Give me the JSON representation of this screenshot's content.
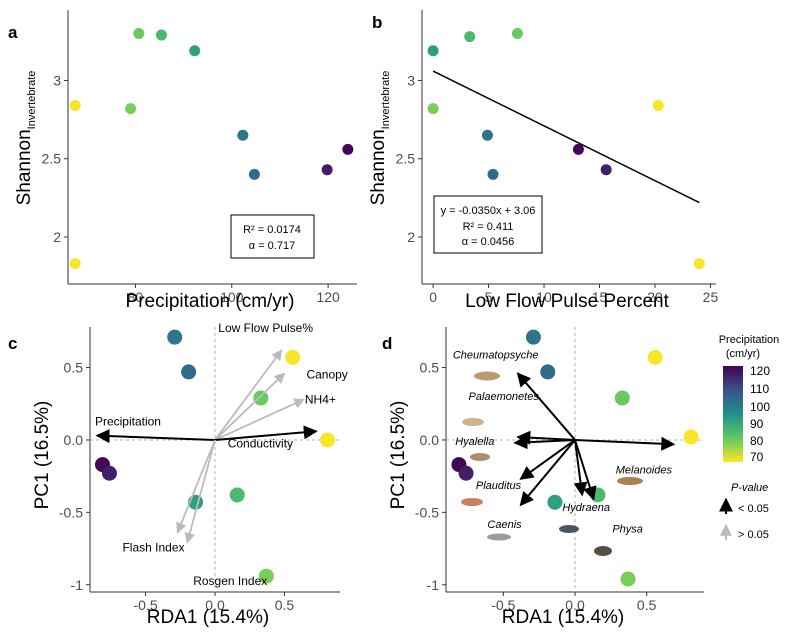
{
  "panels_text": {
    "a": {
      "letter": "a",
      "xlabel": "Precipitation (cm/yr)",
      "ylabel_main": "Shannon",
      "ylabel_sub": "Invertebrate",
      "stats_r2": "R² = 0.0174",
      "stats_alpha": "α = 0.717"
    },
    "b": {
      "letter": "b",
      "xlabel": "Low Flow Pulse Percent",
      "ylabel_main": "Shannon",
      "ylabel_sub": "Invertebrate",
      "stats_eq": "y = -0.0350x + 3.06",
      "stats_r2": "R² = 0.411",
      "stats_alpha": "α = 0.0456"
    },
    "c": {
      "letter": "c",
      "xlabel": "RDA1 (15.4%)",
      "ylabel": "PC1 (16.5%)"
    },
    "d": {
      "letter": "d",
      "xlabel": "RDA1 (15.4%)",
      "ylabel": "PC1 (16.5%)"
    }
  },
  "legend": {
    "title_line1": "Precipitation",
    "title_line2": "(cm/yr)",
    "ticks": [
      "120",
      "110",
      "100",
      "90",
      "80",
      "70"
    ],
    "pvalue_title": "P-value",
    "p_sig": "< 0.05",
    "p_nonsig": "> 0.05",
    "colors": [
      "#440154",
      "#3b528b",
      "#21908d",
      "#5dc863",
      "#fde725"
    ]
  },
  "chart_data": [
    {
      "id": "a",
      "type": "scatter",
      "xlabel": "Precipitation (cm/yr)",
      "ylabel": "Shannon Invertebrate",
      "xlim": [
        66,
        126
      ],
      "ylim": [
        1.7,
        3.45
      ],
      "xticks": [
        80,
        100,
        120
      ],
      "yticks": [
        2.0,
        2.5,
        3.0
      ],
      "points": [
        {
          "x": 67.5,
          "y": 2.84,
          "precip": 67.5
        },
        {
          "x": 67.5,
          "y": 1.83,
          "precip": 67.5
        },
        {
          "x": 79,
          "y": 2.82,
          "precip": 79
        },
        {
          "x": 80.7,
          "y": 3.3,
          "precip": 80.7
        },
        {
          "x": 85.4,
          "y": 3.29,
          "precip": 85.4
        },
        {
          "x": 92.3,
          "y": 3.19,
          "precip": 92.3
        },
        {
          "x": 102.3,
          "y": 2.65,
          "precip": 102.3
        },
        {
          "x": 104.7,
          "y": 2.4,
          "precip": 104.7
        },
        {
          "x": 119.8,
          "y": 2.43,
          "precip": 119.8
        },
        {
          "x": 124.1,
          "y": 2.56,
          "precip": 124.1
        }
      ],
      "annotation": {
        "r2": 0.0174,
        "alpha": 0.717
      }
    },
    {
      "id": "b",
      "type": "scatter",
      "xlabel": "Low Flow Pulse Percent",
      "ylabel": "Shannon Invertebrate",
      "xlim": [
        -1,
        25.5
      ],
      "ylim": [
        1.7,
        3.45
      ],
      "xticks": [
        0,
        5,
        10,
        15,
        20,
        25
      ],
      "yticks": [
        2.0,
        2.5,
        3.0
      ],
      "points": [
        {
          "x": 0,
          "y": 3.19,
          "precip": 92.3
        },
        {
          "x": 0,
          "y": 2.82,
          "precip": 79
        },
        {
          "x": 3.3,
          "y": 3.28,
          "precip": 85.4
        },
        {
          "x": 7.6,
          "y": 3.3,
          "precip": 80.7
        },
        {
          "x": 4.9,
          "y": 2.65,
          "precip": 102.3
        },
        {
          "x": 5.4,
          "y": 2.4,
          "precip": 104.7
        },
        {
          "x": 13.1,
          "y": 2.56,
          "precip": 124.1
        },
        {
          "x": 15.6,
          "y": 2.43,
          "precip": 119.8
        },
        {
          "x": 20.3,
          "y": 2.84,
          "precip": 67.5
        },
        {
          "x": 24,
          "y": 1.83,
          "precip": 67.5
        }
      ],
      "fit": {
        "slope": -0.035,
        "intercept": 3.06,
        "x_from": 0,
        "x_to": 24
      },
      "annotation": {
        "equation": "y = -0.0350x + 3.06",
        "r2": 0.411,
        "alpha": 0.0456
      }
    },
    {
      "id": "c",
      "type": "scatter",
      "xlabel": "RDA1 (15.4%)",
      "ylabel": "PC1 (16.5%)",
      "xlim": [
        -0.9,
        0.9
      ],
      "ylim": [
        -1.05,
        0.78
      ],
      "xticks": [
        -0.5,
        0.0,
        0.5
      ],
      "yticks": [
        -1.0,
        -0.5,
        0.0,
        0.5
      ],
      "points": [
        {
          "x": -0.29,
          "y": 0.71,
          "precip": 102.3
        },
        {
          "x": -0.19,
          "y": 0.47,
          "precip": 104.7
        },
        {
          "x": 0.56,
          "y": 0.57,
          "precip": 67.5
        },
        {
          "x": 0.33,
          "y": 0.29,
          "precip": 80.7
        },
        {
          "x": 0.81,
          "y": 0.0,
          "precip": 67.5
        },
        {
          "x": -0.81,
          "y": -0.17,
          "precip": 124.1
        },
        {
          "x": -0.76,
          "y": -0.23,
          "precip": 119.8
        },
        {
          "x": 0.16,
          "y": -0.38,
          "precip": 85.4
        },
        {
          "x": -0.14,
          "y": -0.43,
          "precip": 92.3
        },
        {
          "x": 0.37,
          "y": -0.94,
          "precip": 79
        }
      ],
      "vectors": [
        {
          "name": "Low Flow Pulse%",
          "x": 0.48,
          "y": 0.62,
          "significant": false
        },
        {
          "name": "Canopy",
          "x": 0.5,
          "y": 0.46,
          "significant": false
        },
        {
          "name": "NH4+",
          "x": 0.64,
          "y": 0.28,
          "significant": false
        },
        {
          "name": "Precipitation",
          "x": -0.85,
          "y": 0.03,
          "significant": true
        },
        {
          "name": "Conductivity",
          "x": 0.73,
          "y": 0.06,
          "significant": true
        },
        {
          "name": "Flash Index",
          "x": -0.27,
          "y": -0.64,
          "significant": false
        },
        {
          "name": "Rosgen Index",
          "x": -0.2,
          "y": -0.71,
          "significant": false
        }
      ]
    },
    {
      "id": "d",
      "type": "scatter",
      "xlabel": "RDA1 (15.4%)",
      "ylabel": "PC1 (16.5%)",
      "xlim": [
        -0.9,
        0.9
      ],
      "ylim": [
        -1.05,
        0.78
      ],
      "xticks": [
        -0.5,
        0.0,
        0.5
      ],
      "yticks": [
        -1.0,
        -0.5,
        0.0,
        0.5
      ],
      "points": [
        {
          "x": -0.29,
          "y": 0.71,
          "precip": 102.3
        },
        {
          "x": -0.19,
          "y": 0.47,
          "precip": 104.7
        },
        {
          "x": 0.56,
          "y": 0.57,
          "precip": 67.5
        },
        {
          "x": 0.33,
          "y": 0.29,
          "precip": 80.7
        },
        {
          "x": 0.81,
          "y": 0.02,
          "precip": 67.5
        },
        {
          "x": -0.81,
          "y": -0.17,
          "precip": 124.1
        },
        {
          "x": -0.76,
          "y": -0.23,
          "precip": 119.8
        },
        {
          "x": 0.16,
          "y": -0.38,
          "precip": 85.4
        },
        {
          "x": -0.14,
          "y": -0.43,
          "precip": 92.3
        },
        {
          "x": 0.37,
          "y": -0.96,
          "precip": 79
        }
      ],
      "vectors": [
        {
          "name": "Cheumatopsyche",
          "x": -0.4,
          "y": 0.46,
          "significant": true
        },
        {
          "name": "Palaemonetes",
          "x": -0.4,
          "y": 0.02,
          "significant": true
        },
        {
          "name": "Hyalella",
          "x": -0.42,
          "y": -0.02,
          "significant": true
        },
        {
          "name": "Plauditus",
          "x": -0.38,
          "y": -0.27,
          "significant": true
        },
        {
          "name": "Caenis",
          "x": -0.38,
          "y": -0.45,
          "significant": true
        },
        {
          "name": "Hydraena",
          "x": 0.05,
          "y": -0.38,
          "significant": true
        },
        {
          "name": "Physa",
          "x": 0.13,
          "y": -0.41,
          "significant": true
        },
        {
          "name": "Melanoides",
          "x": 0.69,
          "y": -0.03,
          "significant": true
        }
      ]
    }
  ]
}
